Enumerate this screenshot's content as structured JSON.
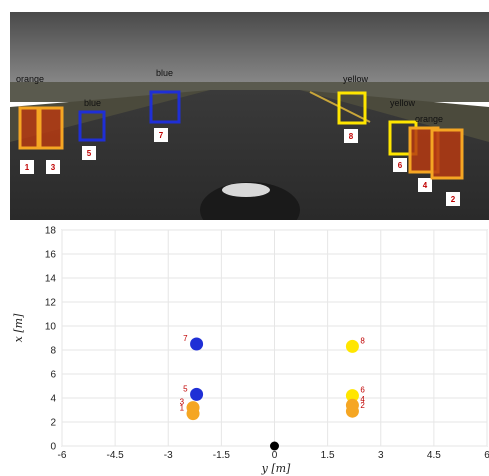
{
  "camera": {
    "colors": {
      "orange": "#f5a623",
      "blue": "#1f2fd6",
      "yellow": "#ffe600"
    },
    "detections": [
      {
        "id": "1",
        "color": "orange",
        "label": "orange"
      },
      {
        "id": "3",
        "color": "orange",
        "label": ""
      },
      {
        "id": "5",
        "color": "blue",
        "label": "blue"
      },
      {
        "id": "7",
        "color": "blue",
        "label": "blue"
      },
      {
        "id": "8",
        "color": "yellow",
        "label": "yellow"
      },
      {
        "id": "6",
        "color": "yellow",
        "label": "yellow"
      },
      {
        "id": "4",
        "color": "orange",
        "label": "orange"
      },
      {
        "id": "2",
        "color": "orange",
        "label": ""
      }
    ]
  },
  "chart_data": {
    "type": "scatter",
    "xlabel": "y [m]",
    "ylabel": "x [m]",
    "xlim": [
      -6,
      6
    ],
    "ylim": [
      0,
      18
    ],
    "xticks": [
      "-6",
      "-4.5",
      "-3",
      "-1.5",
      "0",
      "1.5",
      "3",
      "4.5",
      "6"
    ],
    "yticks": [
      "0",
      "2",
      "4",
      "6",
      "8",
      "10",
      "12",
      "14",
      "16",
      "18"
    ],
    "grid": true,
    "origin": {
      "x": 0,
      "y": 0,
      "color": "#000000"
    },
    "points": [
      {
        "id": "1",
        "x": -2.3,
        "y": 2.7,
        "color": "#f5a623"
      },
      {
        "id": "3",
        "x": -2.3,
        "y": 3.2,
        "color": "#f5a623"
      },
      {
        "id": "5",
        "x": -2.2,
        "y": 4.3,
        "color": "#1f2fd6"
      },
      {
        "id": "7",
        "x": -2.2,
        "y": 8.5,
        "color": "#1f2fd6"
      },
      {
        "id": "8",
        "x": 2.2,
        "y": 8.3,
        "color": "#ffe600"
      },
      {
        "id": "6",
        "x": 2.2,
        "y": 4.2,
        "color": "#ffe600"
      },
      {
        "id": "4",
        "x": 2.2,
        "y": 3.4,
        "color": "#f5a623"
      },
      {
        "id": "2",
        "x": 2.2,
        "y": 2.9,
        "color": "#f5a623"
      }
    ]
  }
}
